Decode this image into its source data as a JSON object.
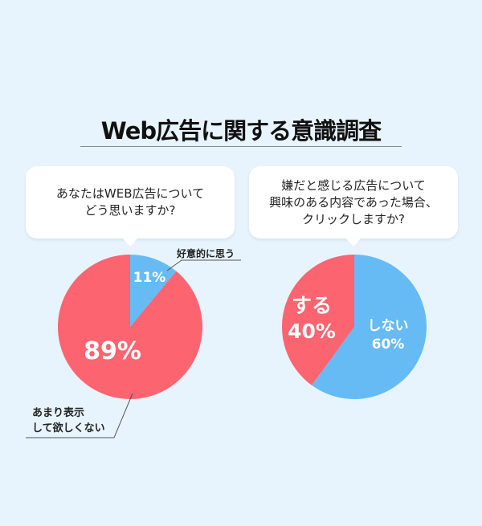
{
  "title": "Web広告に関する意識調査",
  "colors": {
    "red": "#fc6470",
    "blue": "#66bbf5",
    "background": "#e8f4fd"
  },
  "chart_data": [
    {
      "type": "pie",
      "question": [
        "あなたはWEB広告について",
        "どう思いますか?"
      ],
      "slices": [
        {
          "label": "好意的に思う",
          "value": 11,
          "value_label": "11%",
          "color": "#66bbf5"
        },
        {
          "label": "あまり表示して欲しくない",
          "label_lines": [
            "あまり表示",
            "して欲しくない"
          ],
          "value": 89,
          "value_label": "89%",
          "color": "#fc6470"
        }
      ]
    },
    {
      "type": "pie",
      "question": [
        "嫌だと感じる広告について",
        "興味のある内容であった場合、",
        "クリックしますか?"
      ],
      "slices": [
        {
          "label": "しない",
          "value": 60,
          "value_label": "60%",
          "color": "#66bbf5"
        },
        {
          "label": "する",
          "value": 40,
          "value_label": "40%",
          "color": "#fc6470"
        }
      ]
    }
  ]
}
